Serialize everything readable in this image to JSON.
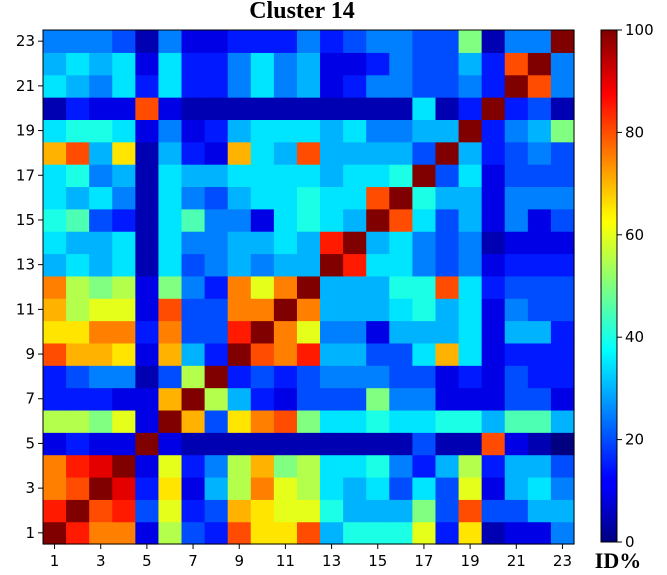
{
  "chart_data": {
    "type": "heatmap",
    "title": "Cluster 14",
    "colorbar_label": "ID%",
    "colormap": "jet",
    "value_range": [
      0,
      100
    ],
    "colorbar_ticks": [
      0,
      20,
      40,
      60,
      80,
      100
    ],
    "x_tick_labels": [
      "1",
      "3",
      "5",
      "7",
      "9",
      "11",
      "13",
      "15",
      "17",
      "19",
      "21",
      "23"
    ],
    "y_tick_labels": [
      "1",
      "3",
      "5",
      "7",
      "9",
      "11",
      "13",
      "15",
      "17",
      "19",
      "21",
      "23"
    ],
    "x_tick_indices": [
      1,
      3,
      5,
      7,
      9,
      11,
      13,
      15,
      17,
      19,
      21,
      23
    ],
    "y_tick_indices": [
      1,
      3,
      5,
      7,
      9,
      11,
      13,
      15,
      17,
      19,
      21,
      23
    ],
    "n": 23,
    "matrix": [
      [
        100,
        85,
        75,
        75,
        10,
        55,
        20,
        15,
        80,
        65,
        65,
        80,
        30,
        40,
        40,
        40,
        60,
        15,
        65,
        5,
        10,
        10,
        25
      ],
      [
        85,
        100,
        80,
        85,
        20,
        60,
        15,
        20,
        70,
        65,
        60,
        60,
        40,
        30,
        30,
        30,
        50,
        20,
        80,
        20,
        20,
        30,
        30
      ],
      [
        75,
        80,
        100,
        90,
        15,
        65,
        10,
        30,
        55,
        75,
        60,
        55,
        35,
        30,
        35,
        20,
        35,
        20,
        60,
        10,
        30,
        35,
        25
      ],
      [
        75,
        85,
        90,
        100,
        10,
        60,
        15,
        25,
        55,
        70,
        50,
        55,
        35,
        35,
        40,
        25,
        15,
        30,
        55,
        15,
        30,
        30,
        20
      ],
      [
        10,
        15,
        10,
        10,
        100,
        10,
        5,
        5,
        5,
        5,
        5,
        5,
        5,
        5,
        5,
        5,
        20,
        5,
        5,
        80,
        10,
        5,
        0
      ],
      [
        55,
        55,
        50,
        60,
        10,
        100,
        70,
        20,
        65,
        75,
        80,
        50,
        35,
        35,
        40,
        35,
        35,
        40,
        40,
        30,
        45,
        45,
        30
      ],
      [
        15,
        15,
        15,
        10,
        10,
        70,
        100,
        55,
        30,
        15,
        10,
        20,
        20,
        20,
        50,
        25,
        25,
        10,
        10,
        10,
        20,
        20,
        10
      ],
      [
        15,
        20,
        25,
        25,
        5,
        20,
        55,
        100,
        15,
        20,
        15,
        20,
        25,
        25,
        25,
        20,
        20,
        10,
        15,
        10,
        20,
        15,
        15
      ],
      [
        80,
        70,
        70,
        65,
        10,
        70,
        30,
        15,
        100,
        80,
        75,
        85,
        30,
        30,
        20,
        20,
        35,
        70,
        35,
        10,
        15,
        15,
        15
      ],
      [
        65,
        65,
        75,
        75,
        15,
        75,
        20,
        20,
        85,
        100,
        75,
        60,
        25,
        25,
        10,
        30,
        30,
        30,
        35,
        10,
        30,
        30,
        15
      ],
      [
        70,
        55,
        60,
        60,
        10,
        80,
        20,
        20,
        75,
        75,
        100,
        75,
        30,
        30,
        30,
        35,
        40,
        30,
        35,
        10,
        25,
        20,
        20
      ],
      [
        75,
        55,
        50,
        55,
        10,
        50,
        25,
        15,
        75,
        60,
        75,
        100,
        30,
        30,
        30,
        40,
        40,
        80,
        35,
        15,
        20,
        20,
        20
      ],
      [
        30,
        35,
        30,
        35,
        5,
        35,
        20,
        25,
        30,
        25,
        30,
        30,
        100,
        85,
        35,
        35,
        25,
        20,
        25,
        10,
        15,
        15,
        15
      ],
      [
        35,
        30,
        30,
        35,
        5,
        35,
        25,
        25,
        30,
        30,
        35,
        30,
        85,
        100,
        30,
        35,
        25,
        20,
        25,
        5,
        10,
        10,
        10
      ],
      [
        40,
        45,
        20,
        15,
        5,
        35,
        45,
        25,
        25,
        10,
        35,
        40,
        35,
        30,
        100,
        80,
        35,
        20,
        30,
        10,
        25,
        10,
        20
      ],
      [
        35,
        30,
        35,
        25,
        5,
        35,
        25,
        20,
        30,
        35,
        35,
        40,
        35,
        35,
        80,
        100,
        40,
        30,
        30,
        10,
        25,
        25,
        25
      ],
      [
        35,
        40,
        25,
        30,
        5,
        35,
        30,
        30,
        35,
        35,
        35,
        35,
        30,
        35,
        35,
        40,
        100,
        20,
        35,
        10,
        20,
        20,
        20
      ],
      [
        70,
        80,
        30,
        65,
        5,
        30,
        15,
        10,
        70,
        35,
        30,
        80,
        30,
        30,
        30,
        30,
        20,
        100,
        30,
        15,
        20,
        25,
        20
      ],
      [
        35,
        40,
        40,
        35,
        10,
        25,
        10,
        15,
        30,
        35,
        35,
        35,
        30,
        35,
        25,
        25,
        30,
        30,
        100,
        15,
        25,
        30,
        50
      ],
      [
        5,
        15,
        10,
        10,
        80,
        10,
        5,
        5,
        5,
        5,
        5,
        5,
        5,
        5,
        5,
        5,
        35,
        5,
        15,
        100,
        15,
        20,
        5
      ],
      [
        35,
        30,
        25,
        35,
        15,
        35,
        15,
        15,
        25,
        35,
        25,
        30,
        10,
        15,
        25,
        25,
        20,
        20,
        25,
        15,
        100,
        80,
        25
      ],
      [
        30,
        35,
        30,
        35,
        10,
        35,
        15,
        15,
        25,
        35,
        25,
        30,
        10,
        10,
        15,
        25,
        20,
        20,
        30,
        15,
        80,
        100,
        25
      ],
      [
        25,
        25,
        25,
        20,
        5,
        25,
        10,
        10,
        15,
        15,
        15,
        25,
        15,
        20,
        25,
        25,
        20,
        20,
        50,
        5,
        25,
        25,
        100
      ]
    ]
  }
}
